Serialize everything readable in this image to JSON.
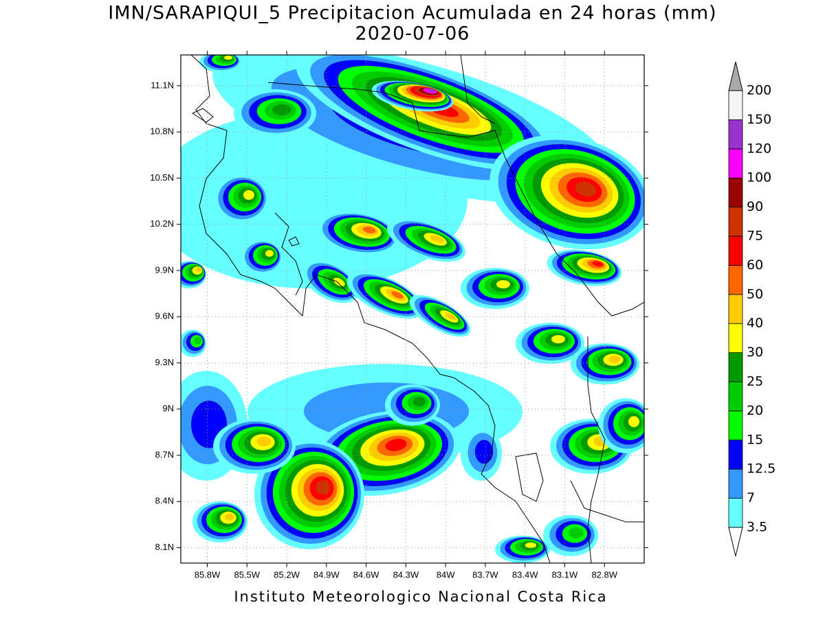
{
  "map": {
    "title": "IMN/SARAPIQUI_5 Precipitacion Acumulada en 24 horas (mm)",
    "subtitle": "2020-07-06",
    "footer": "Instituto Meteorologico Nacional Costa Rica",
    "xlim": [
      -86.0,
      -82.5
    ],
    "ylim": [
      8.0,
      11.3
    ],
    "xticks": [
      {
        "value": -85.8,
        "label": "85.8W"
      },
      {
        "value": -85.5,
        "label": "85.5W"
      },
      {
        "value": -85.2,
        "label": "85.2W"
      },
      {
        "value": -84.9,
        "label": "84.9W"
      },
      {
        "value": -84.6,
        "label": "84.6W"
      },
      {
        "value": -84.3,
        "label": "84.3W"
      },
      {
        "value": -84.0,
        "label": "84W"
      },
      {
        "value": -83.7,
        "label": "83.7W"
      },
      {
        "value": -83.4,
        "label": "83.4W"
      },
      {
        "value": -83.1,
        "label": "83.1W"
      },
      {
        "value": -82.8,
        "label": "82.8W"
      }
    ],
    "yticks": [
      {
        "value": 11.1,
        "label": "11.1N"
      },
      {
        "value": 10.8,
        "label": "10.8N"
      },
      {
        "value": 10.5,
        "label": "10.5N"
      },
      {
        "value": 10.2,
        "label": "10.2N"
      },
      {
        "value": 9.9,
        "label": "9.9N"
      },
      {
        "value": 9.6,
        "label": "9.6N"
      },
      {
        "value": 9.3,
        "label": "9.3N"
      },
      {
        "value": 9.0,
        "label": "9N"
      },
      {
        "value": 8.7,
        "label": "8.7N"
      },
      {
        "value": 8.4,
        "label": "8.4N"
      },
      {
        "value": 8.1,
        "label": "8.1N"
      }
    ],
    "grid": true,
    "colorbar": {
      "levels": [
        3.5,
        7,
        12.5,
        15,
        20,
        25,
        30,
        40,
        50,
        60,
        75,
        90,
        100,
        120,
        150,
        200
      ],
      "colors": [
        "#66ffff",
        "#3399ff",
        "#0000ff",
        "#00ff00",
        "#00cc00",
        "#009900",
        "#ffff00",
        "#ffcc00",
        "#ff6600",
        "#ff0000",
        "#cc3300",
        "#990000",
        "#ff00ff",
        "#9933cc",
        "#f5f5f5"
      ],
      "under_color": "#ffffff",
      "over_color": "#aaaaaa"
    }
  }
}
